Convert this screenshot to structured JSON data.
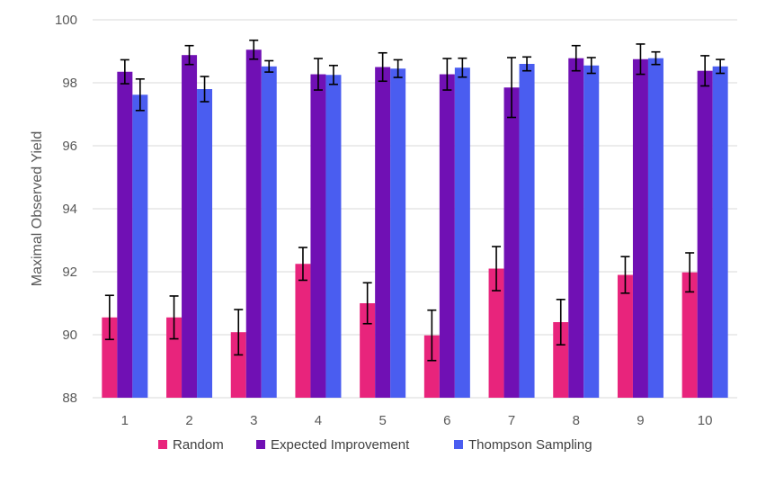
{
  "chart_data": {
    "type": "bar",
    "title": "",
    "xlabel": "",
    "ylabel": "Maximal Observed Yield",
    "ylim": [
      88,
      100
    ],
    "yticks": [
      88,
      90,
      92,
      94,
      96,
      98,
      100
    ],
    "grid": true,
    "legend_position": "bottom",
    "categories": [
      "1",
      "2",
      "3",
      "4",
      "5",
      "6",
      "7",
      "8",
      "9",
      "10"
    ],
    "series": [
      {
        "name": "Random",
        "color": "#e8247c",
        "values": [
          90.55,
          90.55,
          90.08,
          92.25,
          91.0,
          89.98,
          92.1,
          90.4,
          91.9,
          91.98
        ],
        "errors": [
          0.7,
          0.68,
          0.72,
          0.52,
          0.65,
          0.8,
          0.7,
          0.72,
          0.58,
          0.62
        ]
      },
      {
        "name": "Expected Improvement",
        "color": "#7010b4",
        "values": [
          98.35,
          98.88,
          99.05,
          98.27,
          98.5,
          98.27,
          97.85,
          98.78,
          98.75,
          98.38
        ],
        "errors": [
          0.38,
          0.3,
          0.3,
          0.5,
          0.45,
          0.5,
          0.95,
          0.4,
          0.48,
          0.48
        ]
      },
      {
        "name": "Thompson Sampling",
        "color": "#4a5df0",
        "values": [
          97.62,
          97.8,
          98.52,
          98.25,
          98.45,
          98.48,
          98.6,
          98.55,
          98.78,
          98.52
        ],
        "errors": [
          0.5,
          0.4,
          0.18,
          0.3,
          0.28,
          0.3,
          0.22,
          0.25,
          0.2,
          0.22
        ]
      }
    ]
  }
}
